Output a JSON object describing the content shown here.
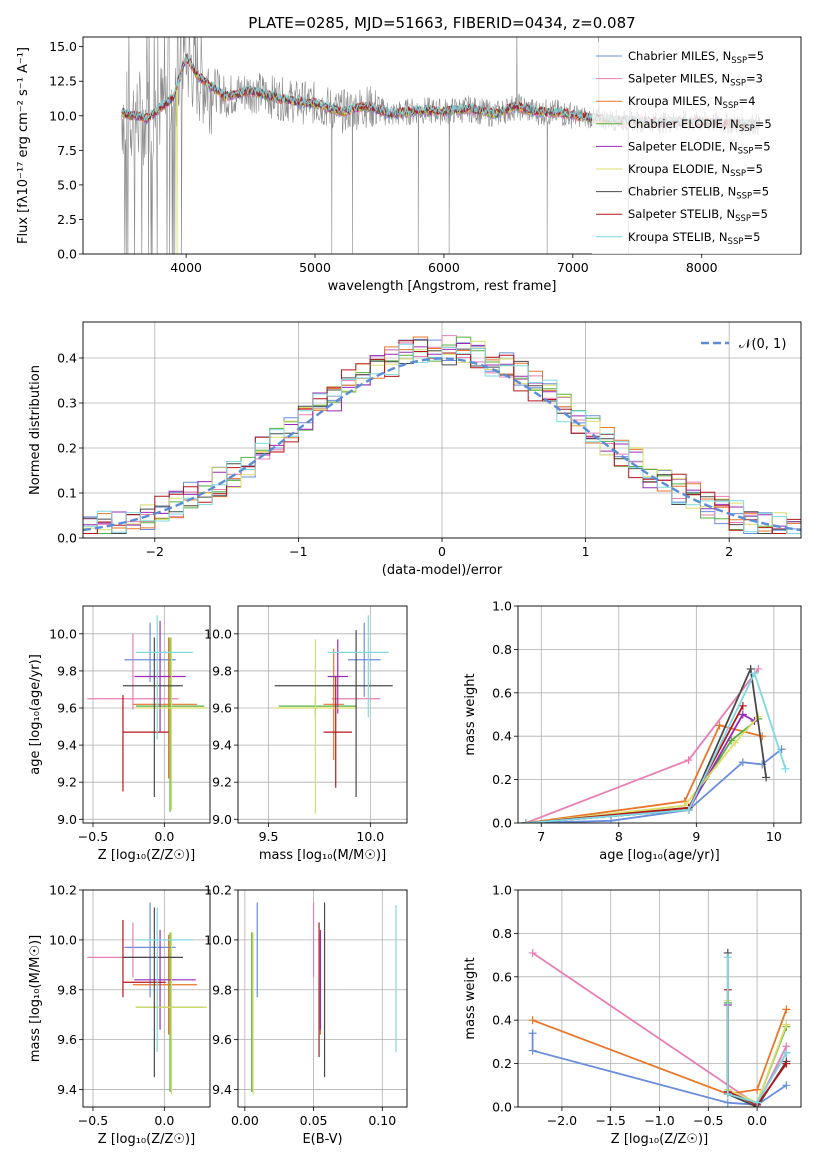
{
  "figure": {
    "title": "PLATE=0285, MJD=51663, FIBERID=0434, z=0.087"
  },
  "legend_labels": [
    "Chabrier MILES, N_SSP=5",
    "Salpeter MILES, N_SSP=3",
    "Kroupa MILES, N_SSP=4",
    "Chabrier ELODIE, N_SSP=5",
    "Salpeter ELODIE, N_SSP=5",
    "Kroupa ELODIE, N_SSP=5",
    "Chabrier STELIB, N_SSP=5",
    "Salpeter STELIB, N_SSP=5",
    "Kroupa STELIB, N_SSP=5"
  ],
  "colors": {
    "Chabrier MILES": "#6a8ddc",
    "Salpeter MILES": "#e77fb4",
    "Kroupa MILES": "#e8762b",
    "Chabrier ELODIE": "#56b040",
    "Salpeter ELODIE": "#9a2bb4",
    "Kroupa ELODIE": "#d9de6b",
    "Chabrier STELIB": "#4a4a4a",
    "Salpeter STELIB": "#b3171c",
    "Kroupa STELIB": "#7fd9e0",
    "data": "#8a8a8a",
    "normal_curve": "#5b8dd6",
    "grid": "#b0b0b0"
  },
  "chart_data": [
    {
      "id": "spectrum",
      "type": "line",
      "title": "PLATE=0285, MJD=51663, FIBERID=0434, z=0.087",
      "xlabel": "wavelength [Angstrom, rest frame]",
      "ylabel": "Flux [fλ10⁻¹⁷ erg cm⁻² s⁻¹ A⁻¹]",
      "xlim": [
        3200,
        8770
      ],
      "ylim": [
        0,
        15.7
      ],
      "xticks": [
        4000,
        5000,
        6000,
        7000,
        8000
      ],
      "yticks": [
        0.0,
        2.5,
        5.0,
        7.5,
        10.0,
        12.5,
        15.0
      ],
      "grid": false,
      "legend_position": "upper right",
      "continuum_x": [
        3500,
        3700,
        3800,
        3900,
        4000,
        4100,
        4300,
        4500,
        4700,
        4860,
        5000,
        5200,
        5400,
        5600,
        5800,
        6000,
        6200,
        6400,
        6563,
        6700,
        6900,
        7100,
        7300,
        7500,
        7700,
        7900,
        8100,
        8300,
        8450
      ],
      "continuum_y": [
        10.2,
        9.8,
        10.6,
        11.3,
        14.2,
        12.8,
        11.4,
        11.8,
        11.3,
        11.0,
        10.9,
        10.3,
        10.7,
        10.1,
        10.4,
        10.3,
        10.5,
        10.1,
        10.7,
        10.3,
        10.2,
        9.9,
        9.7,
        9.6,
        9.5,
        9.6,
        9.5,
        9.4,
        9.4
      ]
    },
    {
      "id": "residuals",
      "type": "bar",
      "xlabel": "(data-model)/error",
      "ylabel": "Normed distribution",
      "xlim": [
        -2.5,
        2.5
      ],
      "ylim": [
        0,
        0.48
      ],
      "xticks": [
        -2,
        -1,
        0,
        1,
        2
      ],
      "yticks": [
        0.0,
        0.1,
        0.2,
        0.3,
        0.4
      ],
      "grid": true,
      "legend": [
        {
          "name": "𝒩(0, 1)"
        }
      ],
      "legend_position": "upper right"
    },
    {
      "id": "age-vs-Z",
      "type": "scatter",
      "xlabel": "Z [log₁₀(Z/Z☉)]",
      "ylabel": "age  [log₁₀(age/yr)]",
      "xlim": [
        -0.57,
        0.32
      ],
      "ylim": [
        8.98,
        10.15
      ],
      "xticks": [
        -0.5,
        0.0
      ],
      "yticks": [
        9.0,
        9.2,
        9.4,
        9.6,
        9.8,
        10.0
      ],
      "grid": true,
      "points": [
        {
          "series": "Chabrier MILES",
          "x": -0.1,
          "xerr": [
            0.18,
            0.18
          ],
          "y": 9.86,
          "yerr": [
            0.12,
            0.2
          ]
        },
        {
          "series": "Salpeter MILES",
          "x": -0.22,
          "xerr": [
            0.32,
            0.32
          ],
          "y": 9.65,
          "yerr": [
            0.06,
            0.35
          ]
        },
        {
          "series": "Kroupa MILES",
          "x": 0.03,
          "xerr": [
            0.25,
            0.2
          ],
          "y": 9.62,
          "yerr": [
            0.4,
            0.36
          ]
        },
        {
          "series": "Chabrier ELODIE",
          "x": 0.04,
          "xerr": [
            0.24,
            0.24
          ],
          "y": 9.61,
          "yerr": [
            0.57,
            0.37
          ]
        },
        {
          "series": "Salpeter ELODIE",
          "x": -0.03,
          "xerr": [
            0.18,
            0.18
          ],
          "y": 9.77,
          "yerr": [
            0.3,
            0.3
          ]
        },
        {
          "series": "Kroupa ELODIE",
          "x": 0.05,
          "xerr": [
            0.25,
            0.25
          ],
          "y": 9.6,
          "yerr": [
            0.55,
            0.38
          ]
        },
        {
          "series": "Chabrier STELIB",
          "x": -0.07,
          "xerr": [
            0.22,
            0.2
          ],
          "y": 9.72,
          "yerr": [
            0.6,
            0.26
          ]
        },
        {
          "series": "Salpeter STELIB",
          "x": -0.29,
          "xerr": [
            0.0,
            0.32
          ],
          "y": 9.47,
          "yerr": [
            0.32,
            0.2
          ]
        },
        {
          "series": "Kroupa STELIB",
          "x": -0.05,
          "xerr": [
            0.15,
            0.25
          ],
          "y": 9.9,
          "yerr": [
            0.47,
            0.2
          ]
        }
      ]
    },
    {
      "id": "age-vs-mass",
      "type": "scatter",
      "xlabel": "mass [log₁₀(M/M☉)]",
      "ylabel": "",
      "xlim": [
        9.35,
        10.18
      ],
      "ylim": [
        8.98,
        10.15
      ],
      "xticks": [
        9.5,
        10.0
      ],
      "yticks": [
        9.0,
        9.2,
        9.4,
        9.6,
        9.8,
        10.0
      ],
      "grid": true,
      "points": [
        {
          "series": "Chabrier MILES",
          "x": 9.97,
          "xerr": [
            0.08,
            0.08
          ],
          "y": 9.86,
          "yerr": [
            0.2,
            0.2
          ]
        },
        {
          "series": "Salpeter MILES",
          "x": 9.93,
          "xerr": [
            0.12,
            0.12
          ],
          "y": 9.65,
          "yerr": [
            0.06,
            0.06
          ]
        },
        {
          "series": "Kroupa MILES",
          "x": 9.82,
          "xerr": [
            0.05,
            0.05
          ],
          "y": 9.62,
          "yerr": [
            0.3,
            0.3
          ]
        },
        {
          "series": "Chabrier ELODIE",
          "x": 9.73,
          "xerr": [
            0.18,
            0.2
          ],
          "y": 9.61,
          "yerr": [
            0.05,
            0.05
          ]
        },
        {
          "series": "Salpeter ELODIE",
          "x": 9.84,
          "xerr": [
            0.05,
            0.05
          ],
          "y": 9.77,
          "yerr": [
            0.2,
            0.2
          ]
        },
        {
          "series": "Kroupa ELODIE",
          "x": 9.73,
          "xerr": [
            0.2,
            0.2
          ],
          "y": 9.6,
          "yerr": [
            0.57,
            0.37
          ]
        },
        {
          "series": "Chabrier STELIB",
          "x": 9.93,
          "xerr": [
            0.4,
            0.18
          ],
          "y": 9.72,
          "yerr": [
            0.6,
            0.3
          ]
        },
        {
          "series": "Salpeter STELIB",
          "x": 9.83,
          "xerr": [
            0.06,
            0.08
          ],
          "y": 9.47,
          "yerr": [
            0.3,
            0.3
          ]
        },
        {
          "series": "Kroupa STELIB",
          "x": 9.99,
          "xerr": [
            0.2,
            0.1
          ],
          "y": 9.9,
          "yerr": [
            0.35,
            0.2
          ]
        }
      ]
    },
    {
      "id": "weight-vs-age",
      "type": "line",
      "xlabel": "age  [log₁₀(age/yr)]",
      "ylabel": "mass weight",
      "xlim": [
        6.7,
        10.35
      ],
      "ylim": [
        0,
        1.0
      ],
      "xticks": [
        7,
        8,
        9,
        10
      ],
      "yticks": [
        0.0,
        0.2,
        0.4,
        0.6,
        0.8,
        1.0
      ],
      "grid": true,
      "series": [
        {
          "name": "Chabrier MILES",
          "x": [
            6.8,
            7.9,
            8.9,
            9.6,
            9.85,
            10.1
          ],
          "y": [
            0.0,
            0.01,
            0.06,
            0.28,
            0.27,
            0.34
          ]
        },
        {
          "name": "Salpeter MILES",
          "x": [
            6.8,
            8.9,
            9.8
          ],
          "y": [
            0.0,
            0.29,
            0.71
          ]
        },
        {
          "name": "Kroupa MILES",
          "x": [
            6.8,
            8.85,
            9.3,
            9.85
          ],
          "y": [
            0.0,
            0.1,
            0.45,
            0.4
          ]
        },
        {
          "name": "Chabrier ELODIE",
          "x": [
            6.8,
            8.9,
            9.45,
            9.8
          ],
          "y": [
            0.0,
            0.07,
            0.38,
            0.48
          ]
        },
        {
          "name": "Salpeter ELODIE",
          "x": [
            6.8,
            8.9,
            9.6,
            9.75
          ],
          "y": [
            0.0,
            0.06,
            0.5,
            0.47
          ]
        },
        {
          "name": "Kroupa ELODIE",
          "x": [
            6.8,
            8.85,
            9.5,
            9.8
          ],
          "y": [
            0.0,
            0.08,
            0.37,
            0.49
          ]
        },
        {
          "name": "Chabrier STELIB",
          "x": [
            6.8,
            8.9,
            9.7,
            9.9
          ],
          "y": [
            0.0,
            0.06,
            0.71,
            0.21
          ]
        },
        {
          "name": "Salpeter STELIB",
          "x": [
            6.8,
            8.9,
            9.6
          ],
          "y": [
            0.0,
            0.07,
            0.54
          ]
        },
        {
          "name": "Kroupa STELIB",
          "x": [
            6.8,
            8.9,
            9.75,
            10.15
          ],
          "y": [
            0.0,
            0.06,
            0.69,
            0.25
          ]
        }
      ]
    },
    {
      "id": "mass-vs-Z",
      "type": "scatter",
      "xlabel": "Z [log₁₀(Z/Z☉)]",
      "ylabel": "mass [log₁₀(M/M☉)]",
      "xlim": [
        -0.57,
        0.32
      ],
      "ylim": [
        9.33,
        10.2
      ],
      "xticks": [
        -0.5,
        0.0
      ],
      "yticks": [
        9.4,
        9.6,
        9.8,
        10.0,
        10.2
      ],
      "grid": true,
      "points": [
        {
          "series": "Chabrier MILES",
          "x": -0.1,
          "xerr": [
            0.18,
            0.18
          ],
          "y": 9.97,
          "yerr": [
            0.2,
            0.18
          ]
        },
        {
          "series": "Salpeter MILES",
          "x": -0.22,
          "xerr": [
            0.32,
            0.32
          ],
          "y": 9.93,
          "yerr": [
            0.08,
            0.14
          ]
        },
        {
          "series": "Kroupa MILES",
          "x": 0.03,
          "xerr": [
            0.25,
            0.2
          ],
          "y": 9.82,
          "yerr": [
            0.2,
            0.2
          ]
        },
        {
          "series": "Chabrier ELODIE",
          "x": 0.04,
          "xerr": [
            0.24,
            0.24
          ],
          "y": 9.73,
          "yerr": [
            0.34,
            0.3
          ]
        },
        {
          "series": "Salpeter ELODIE",
          "x": -0.03,
          "xerr": [
            0.18,
            0.25
          ],
          "y": 9.84,
          "yerr": [
            0.2,
            0.2
          ]
        },
        {
          "series": "Kroupa ELODIE",
          "x": 0.05,
          "xerr": [
            0.25,
            0.25
          ],
          "y": 9.73,
          "yerr": [
            0.35,
            0.3
          ]
        },
        {
          "series": "Chabrier STELIB",
          "x": -0.07,
          "xerr": [
            0.22,
            0.2
          ],
          "y": 9.93,
          "yerr": [
            0.48,
            0.2
          ]
        },
        {
          "series": "Salpeter STELIB",
          "x": -0.29,
          "xerr": [
            0.0,
            0.3
          ],
          "y": 9.83,
          "yerr": [
            0.06,
            0.25
          ]
        },
        {
          "series": "Kroupa STELIB",
          "x": -0.05,
          "xerr": [
            0.15,
            0.25
          ],
          "y": 10.0,
          "yerr": [
            0.45,
            0.13
          ]
        }
      ]
    },
    {
      "id": "mass-vs-EBV",
      "type": "scatter",
      "xlabel": "E(B-V)",
      "ylabel": "",
      "xlim": [
        -0.005,
        0.118
      ],
      "ylim": [
        9.33,
        10.2
      ],
      "xticks": [
        0.0,
        0.05,
        0.1
      ],
      "yticks": [
        9.4,
        9.6,
        9.8,
        10.0,
        10.2
      ],
      "grid": true,
      "points": [
        {
          "series": "Chabrier MILES",
          "x": 0.009,
          "yerr": [
            0.2,
            0.18
          ],
          "y": 9.97
        },
        {
          "series": "Salpeter MILES",
          "x": 0.05,
          "yerr": [
            0.08,
            0.22
          ],
          "y": 9.93
        },
        {
          "series": "Kroupa MILES",
          "x": 0.055,
          "yerr": [
            0.2,
            0.2
          ],
          "y": 9.82
        },
        {
          "series": "Chabrier ELODIE",
          "x": 0.005,
          "yerr": [
            0.34,
            0.3
          ],
          "y": 9.73
        },
        {
          "series": "Salpeter ELODIE",
          "x": 0.055,
          "yerr": [
            0.2,
            0.2
          ],
          "y": 9.84
        },
        {
          "series": "Kroupa ELODIE",
          "x": 0.006,
          "yerr": [
            0.35,
            0.3
          ],
          "y": 9.73
        },
        {
          "series": "Chabrier STELIB",
          "x": 0.058,
          "yerr": [
            0.48,
            0.22
          ],
          "y": 9.93
        },
        {
          "series": "Salpeter STELIB",
          "x": 0.054,
          "yerr": [
            0.3,
            0.24
          ],
          "y": 9.83
        },
        {
          "series": "Kroupa STELIB",
          "x": 0.11,
          "yerr": [
            0.45,
            0.14
          ],
          "y": 10.0
        }
      ]
    },
    {
      "id": "weight-vs-Z",
      "type": "line",
      "xlabel": "Z [log₁₀(Z/Z☉)]",
      "ylabel": "mass weight",
      "xlim": [
        -2.45,
        0.45
      ],
      "ylim": [
        0,
        1.0
      ],
      "xticks": [
        -2.0,
        -1.5,
        -1.0,
        -0.5,
        0.0
      ],
      "yticks": [
        0.0,
        0.2,
        0.4,
        0.6,
        0.8,
        1.0
      ],
      "grid": true,
      "series": [
        {
          "name": "Chabrier MILES",
          "x": [
            -2.3,
            -2.3,
            -0.3,
            0.0,
            0.3
          ],
          "y": [
            0.34,
            0.26,
            0.02,
            0.01,
            0.1
          ]
        },
        {
          "name": "Salpeter MILES",
          "x": [
            -2.3,
            0.0,
            0.3
          ],
          "y": [
            0.71,
            0.01,
            0.28
          ]
        },
        {
          "name": "Kroupa MILES",
          "x": [
            -2.3,
            -0.3,
            0.0,
            0.3
          ],
          "y": [
            0.4,
            0.06,
            0.08,
            0.45
          ]
        },
        {
          "name": "Chabrier ELODIE",
          "x": [
            -0.3,
            -0.3,
            0.0,
            0.3
          ],
          "y": [
            0.48,
            0.06,
            0.02,
            0.37
          ]
        },
        {
          "name": "Salpeter ELODIE",
          "x": [
            -0.3,
            -0.3,
            0.0,
            0.3
          ],
          "y": [
            0.47,
            0.07,
            0.02,
            0.25
          ]
        },
        {
          "name": "Kroupa ELODIE",
          "x": [
            -0.3,
            -0.3,
            0.0,
            0.3
          ],
          "y": [
            0.49,
            0.08,
            0.02,
            0.38
          ]
        },
        {
          "name": "Chabrier STELIB",
          "x": [
            -0.3,
            -0.3,
            0.0,
            0.3
          ],
          "y": [
            0.71,
            0.06,
            0.0,
            0.21
          ]
        },
        {
          "name": "Salpeter STELIB",
          "x": [
            -0.3,
            -0.3,
            0.0,
            0.3
          ],
          "y": [
            0.54,
            0.07,
            0.01,
            0.2
          ]
        },
        {
          "name": "Kroupa STELIB",
          "x": [
            -0.3,
            -0.3,
            0.0,
            0.3
          ],
          "y": [
            0.69,
            0.06,
            0.02,
            0.25
          ]
        }
      ]
    }
  ]
}
